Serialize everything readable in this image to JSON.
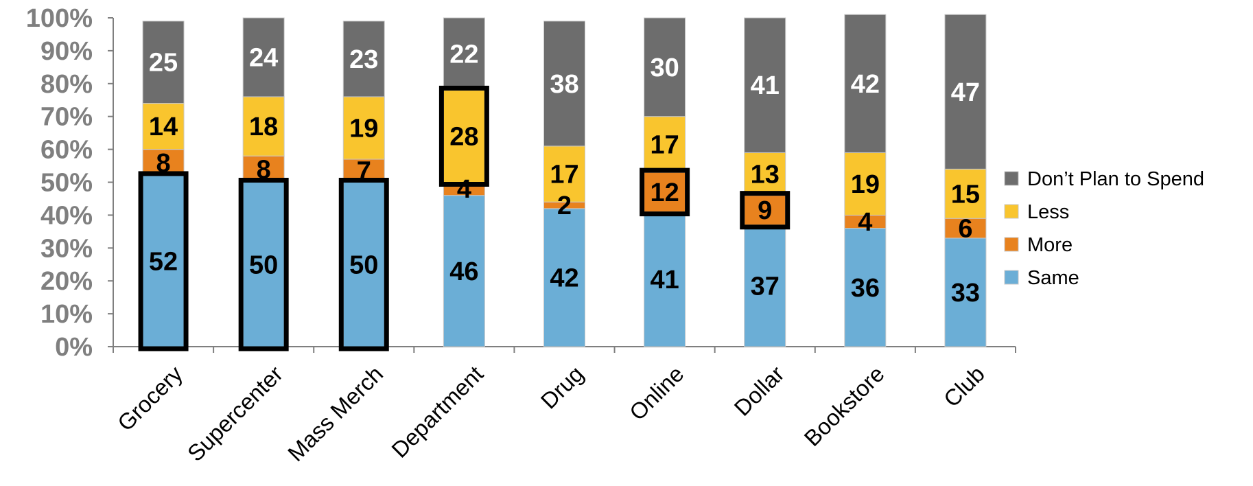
{
  "chart_data": {
    "type": "bar",
    "stacked": true,
    "categories": [
      "Grocery",
      "Supercenter",
      "Mass Merch",
      "Department",
      "Drug",
      "Online",
      "Dollar",
      "Bookstore",
      "Club"
    ],
    "series": [
      {
        "name": "Same",
        "color": "#6BAED6",
        "label_color": "#000000",
        "values": [
          52,
          50,
          50,
          46,
          42,
          41,
          37,
          36,
          33
        ]
      },
      {
        "name": "More",
        "color": "#E8821E",
        "label_color": "#000000",
        "values": [
          8,
          8,
          7,
          4,
          2,
          12,
          9,
          4,
          6
        ]
      },
      {
        "name": "Less",
        "color": "#F9C52E",
        "label_color": "#000000",
        "values": [
          14,
          18,
          19,
          28,
          17,
          17,
          13,
          19,
          15
        ]
      },
      {
        "name": "Don’t Plan to Spend",
        "color": "#6D6D6D",
        "label_color": "#ffffff",
        "values": [
          25,
          24,
          23,
          22,
          38,
          30,
          41,
          42,
          47
        ]
      }
    ],
    "y_ticks": [
      "0%",
      "10%",
      "20%",
      "30%",
      "40%",
      "50%",
      "60%",
      "70%",
      "80%",
      "90%",
      "100%"
    ],
    "ylim": [
      0,
      100
    ],
    "legend": {
      "position": "right",
      "entries": [
        "Don’t Plan to Spend",
        "Less",
        "More",
        "Same"
      ]
    },
    "highlights": [
      {
        "category": "Grocery",
        "series": "Same"
      },
      {
        "category": "Supercenter",
        "series": "Same"
      },
      {
        "category": "Mass Merch",
        "series": "Same"
      },
      {
        "category": "Department",
        "series": "Less"
      },
      {
        "category": "Online",
        "series": "More"
      },
      {
        "category": "Dollar",
        "series": "More"
      }
    ],
    "grid": false
  }
}
